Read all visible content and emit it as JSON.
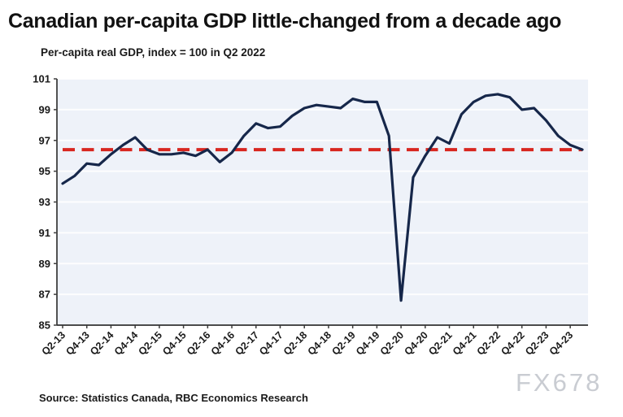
{
  "header": {
    "title": "Canadian per-capita GDP little-changed from a decade ago",
    "subtitle": "Per-capita real GDP, index = 100 in Q2 2022"
  },
  "footer": {
    "source": "Source: Statistics Canada, RBC Economics Research",
    "watermark": "FX678"
  },
  "chart_data": {
    "type": "line",
    "title": "Canadian per-capita GDP little-changed from a decade ago",
    "subtitle": "Per-capita real GDP, index = 100 in Q2 2022",
    "xlabel": "",
    "ylabel": "",
    "ylim": [
      85,
      101
    ],
    "y_ticks": [
      85,
      87,
      89,
      91,
      93,
      95,
      97,
      99,
      101
    ],
    "grid": "horizontal",
    "legend_position": "none",
    "x": [
      "Q2-13",
      "Q3-13",
      "Q4-13",
      "Q1-14",
      "Q2-14",
      "Q3-14",
      "Q4-14",
      "Q1-15",
      "Q2-15",
      "Q3-15",
      "Q4-15",
      "Q1-16",
      "Q2-16",
      "Q3-16",
      "Q4-16",
      "Q1-17",
      "Q2-17",
      "Q3-17",
      "Q4-17",
      "Q1-18",
      "Q2-18",
      "Q3-18",
      "Q4-18",
      "Q1-19",
      "Q2-19",
      "Q3-19",
      "Q4-19",
      "Q1-20",
      "Q2-20",
      "Q3-20",
      "Q4-20",
      "Q1-21",
      "Q2-21",
      "Q3-21",
      "Q4-21",
      "Q1-22",
      "Q2-22",
      "Q3-22",
      "Q4-22",
      "Q1-23",
      "Q2-23",
      "Q3-23",
      "Q4-23",
      "Q1-24"
    ],
    "x_tick_labels": [
      "Q2-13",
      "Q4-13",
      "Q2-14",
      "Q4-14",
      "Q2-15",
      "Q4-15",
      "Q2-16",
      "Q4-16",
      "Q2-17",
      "Q4-17",
      "Q2-18",
      "Q4-18",
      "Q2-19",
      "Q4-19",
      "Q2-20",
      "Q4-20",
      "Q2-21",
      "Q4-21",
      "Q2-22",
      "Q4-22",
      "Q2-23",
      "Q4-23"
    ],
    "series": [
      {
        "name": "Per-capita real GDP (index, Q2 2022 = 100)",
        "color": "#16274a",
        "values": [
          94.2,
          94.7,
          95.5,
          95.4,
          96.1,
          96.7,
          97.2,
          96.4,
          96.1,
          96.1,
          96.2,
          96.0,
          96.4,
          95.6,
          96.2,
          97.3,
          98.1,
          97.8,
          97.9,
          98.6,
          99.1,
          99.3,
          99.2,
          99.1,
          99.7,
          99.5,
          99.5,
          97.3,
          86.6,
          94.6,
          96.0,
          97.2,
          96.8,
          98.7,
          99.5,
          99.9,
          100.0,
          99.8,
          99.0,
          99.1,
          98.3,
          97.3,
          96.7,
          96.4
        ]
      }
    ],
    "reference_line": {
      "value": 96.4,
      "style": "dashed",
      "color": "#d8261f"
    },
    "colors": {
      "plot_background": "#eef2f9",
      "grid": "#ffffff",
      "axis": "#3f3f3f"
    }
  }
}
